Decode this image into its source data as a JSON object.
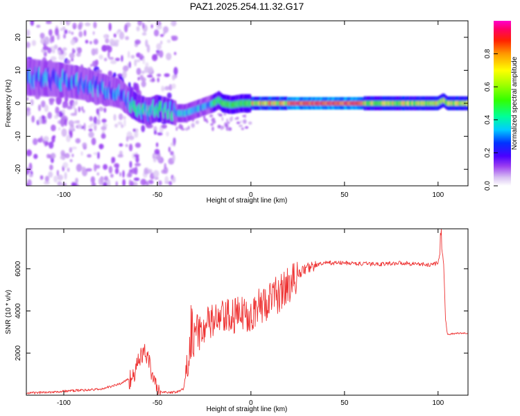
{
  "title": "PAZ1.2025.254.11.32.G17",
  "chart_data": [
    {
      "type": "heatmap",
      "xlabel": "Height of straight line (km)",
      "ylabel": "Frequency (Hz)",
      "xlim": [
        -120,
        116
      ],
      "ylim": [
        -25,
        25
      ],
      "xticks": [
        -100,
        -50,
        0,
        50,
        100
      ],
      "yticks": [
        -20,
        -10,
        0,
        10,
        20
      ],
      "colorbar": {
        "label": "Normalized spectral amplitude",
        "range": [
          0,
          1
        ],
        "ticks": [
          "0.0",
          "0.2",
          "0.4",
          "0.6",
          "0.8"
        ]
      },
      "ridge": {
        "x": [
          -120,
          -110,
          -100,
          -90,
          -80,
          -70,
          -65,
          -60,
          -55,
          -50,
          -45,
          -40,
          -35,
          -30,
          -25,
          -20,
          -17,
          -15,
          -10,
          -5,
          0,
          10,
          20,
          30,
          40,
          50,
          60,
          70,
          80,
          90,
          100,
          103,
          105,
          110,
          116
        ],
        "freq": [
          8,
          7.5,
          7,
          6,
          4.5,
          3,
          0.5,
          -1.5,
          -2.5,
          -1.5,
          -2,
          -3,
          -3,
          -2,
          -1,
          0,
          1,
          0,
          -0.5,
          0,
          0,
          0,
          0,
          0,
          0,
          0,
          0,
          0,
          0,
          0,
          0,
          1,
          0,
          0,
          0
        ]
      }
    },
    {
      "type": "line",
      "xlabel": "Height of straight line (km)",
      "ylabel": "SNR (10 * v/v)",
      "xlim": [
        -120,
        116
      ],
      "ylim": [
        0,
        7900
      ],
      "xticks": [
        -100,
        -50,
        0,
        50,
        100
      ],
      "yticks": [
        2000,
        4000,
        6000
      ],
      "color": "#ee3333",
      "envelope": {
        "x": [
          -120,
          -100,
          -80,
          -70,
          -65,
          -62,
          -60,
          -57,
          -55,
          -52,
          -50,
          -45,
          -40,
          -36,
          -34,
          -32,
          -30,
          -28,
          -25,
          -20,
          -15,
          -10,
          -5,
          0,
          5,
          10,
          15,
          20,
          25,
          30,
          35,
          40,
          50,
          60,
          70,
          80,
          90,
          95,
          100,
          102,
          103,
          104,
          105,
          110,
          116
        ],
        "y": [
          100,
          200,
          300,
          550,
          800,
          1200,
          1700,
          2200,
          1800,
          900,
          200,
          150,
          150,
          300,
          1500,
          2600,
          3000,
          3200,
          3400,
          3700,
          3800,
          3900,
          4000,
          4100,
          4400,
          4700,
          5000,
          5400,
          5800,
          6100,
          6200,
          6300,
          6300,
          6250,
          6250,
          6300,
          6250,
          6200,
          6300,
          7000,
          6200,
          3600,
          2900,
          2950,
          2950
        ]
      }
    }
  ]
}
